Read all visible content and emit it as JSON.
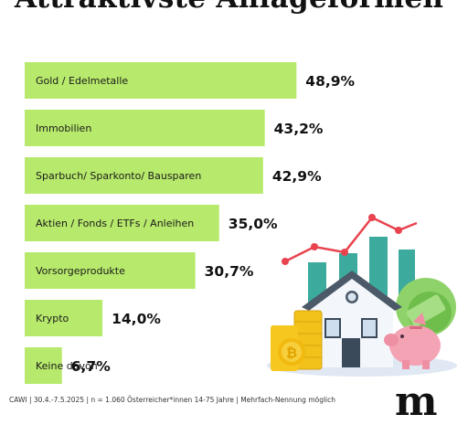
{
  "header": {
    "title": "Attraktivste Anlageformen"
  },
  "chart_data": {
    "type": "bar",
    "orientation": "horizontal",
    "title": "Attraktivste Anlageformen",
    "categories": [
      "Gold / Edelmetalle",
      "Immobilien",
      "Sparbuch/ Sparkonto/ Bausparen",
      "Aktien / Fonds / ETFs / Anleihen",
      "Vorsorgeprodukte",
      "Krypto",
      "Keine davon"
    ],
    "values": [
      48.9,
      43.2,
      42.9,
      35.0,
      30.7,
      14.0,
      6.7
    ],
    "value_labels": [
      "48,9%",
      "43,2%",
      "42,9%",
      "35,0%",
      "30,7%",
      "14,0%",
      "6,7%"
    ],
    "unit": "%",
    "xlim": [
      0,
      60
    ],
    "bar_color": "#b7ea6c",
    "grid": false,
    "legend": "none"
  },
  "footer": {
    "source": "CAWI | 30.4.-7.5.2025 | n = 1.060 Österreicher*innen 14-75 Jahre | Mehrfach-Nennung möglich"
  },
  "brand": {
    "logo": "m"
  },
  "illustration": {
    "icons": [
      "house-icon",
      "coin-stack-icon",
      "piggy-bank-icon",
      "money-bundle-icon",
      "growth-chart-icon"
    ]
  }
}
